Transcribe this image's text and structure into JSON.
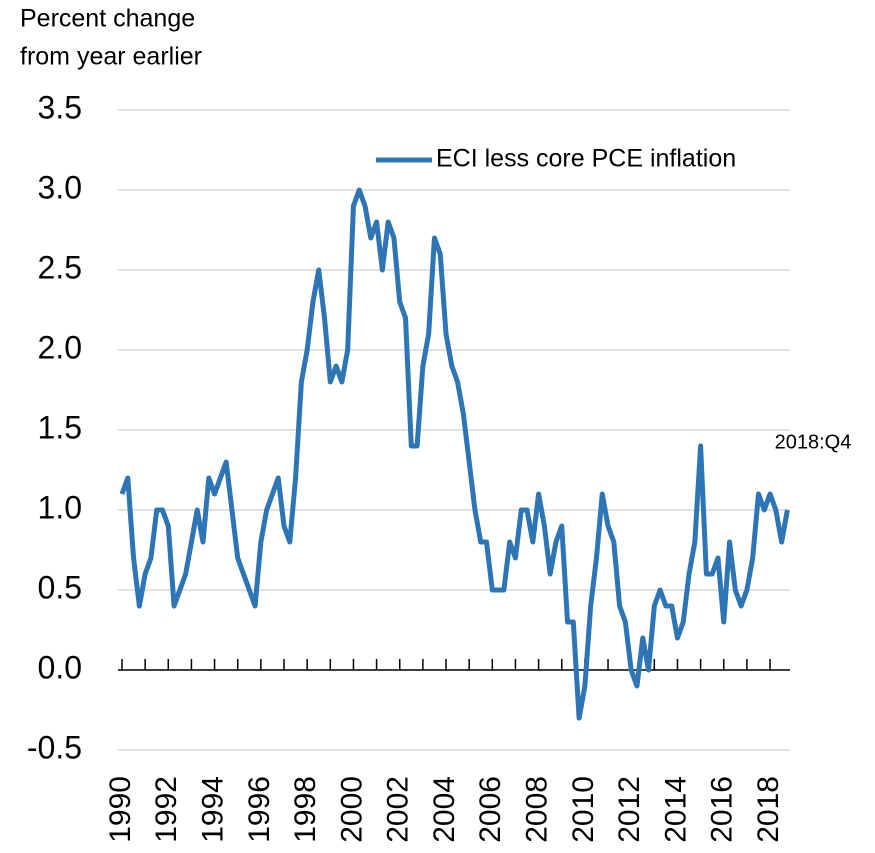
{
  "chart_data": {
    "type": "line",
    "y_label_lines": [
      "Percent change",
      "from year earlier"
    ],
    "annotation": "2018:Q4",
    "x": [
      1990,
      1990.25,
      1990.5,
      1990.75,
      1991,
      1991.25,
      1991.5,
      1991.75,
      1992,
      1992.25,
      1992.5,
      1992.75,
      1993,
      1993.25,
      1993.5,
      1993.75,
      1994,
      1994.25,
      1994.5,
      1994.75,
      1995,
      1995.25,
      1995.5,
      1995.75,
      1996,
      1996.25,
      1996.5,
      1996.75,
      1997,
      1997.25,
      1997.5,
      1997.75,
      1998,
      1998.25,
      1998.5,
      1998.75,
      1999,
      1999.25,
      1999.5,
      1999.75,
      2000,
      2000.25,
      2000.5,
      2000.75,
      2001,
      2001.25,
      2001.5,
      2001.75,
      2002,
      2002.25,
      2002.5,
      2002.75,
      2003,
      2003.25,
      2003.5,
      2003.75,
      2004,
      2004.25,
      2004.5,
      2004.75,
      2005,
      2005.25,
      2005.5,
      2005.75,
      2006,
      2006.25,
      2006.5,
      2006.75,
      2007,
      2007.25,
      2007.5,
      2007.75,
      2008,
      2008.25,
      2008.5,
      2008.75,
      2009,
      2009.25,
      2009.5,
      2009.75,
      2010,
      2010.25,
      2010.5,
      2010.75,
      2011,
      2011.25,
      2011.5,
      2011.75,
      2012,
      2012.25,
      2012.5,
      2012.75,
      2013,
      2013.25,
      2013.5,
      2013.75,
      2014,
      2014.25,
      2014.5,
      2014.75,
      2015,
      2015.25,
      2015.5,
      2015.75,
      2016,
      2016.25,
      2016.5,
      2016.75,
      2017,
      2017.25,
      2017.5,
      2017.75,
      2018,
      2018.25,
      2018.5,
      2018.75
    ],
    "series": [
      {
        "name": "ECI less core PCE inflation",
        "color": "#2e75b6",
        "values": [
          1.1,
          1.2,
          0.7,
          0.4,
          0.6,
          0.7,
          1.0,
          1.0,
          0.9,
          0.4,
          0.5,
          0.6,
          0.8,
          1.0,
          0.8,
          1.2,
          1.1,
          1.2,
          1.3,
          1.0,
          0.7,
          0.6,
          0.5,
          0.4,
          0.8,
          1.0,
          1.1,
          1.2,
          0.9,
          0.8,
          1.2,
          1.8,
          2.0,
          2.3,
          2.5,
          2.2,
          1.8,
          1.9,
          1.8,
          2.0,
          2.9,
          3.0,
          2.9,
          2.7,
          2.8,
          2.5,
          2.8,
          2.7,
          2.3,
          2.2,
          1.4,
          1.4,
          1.9,
          2.1,
          2.7,
          2.6,
          2.1,
          1.9,
          1.8,
          1.6,
          1.3,
          1.0,
          0.8,
          0.8,
          0.5,
          0.5,
          0.5,
          0.8,
          0.7,
          1.0,
          1.0,
          0.8,
          1.1,
          0.9,
          0.6,
          0.8,
          0.9,
          0.3,
          0.3,
          -0.3,
          -0.1,
          0.4,
          0.7,
          1.1,
          0.9,
          0.8,
          0.4,
          0.3,
          0.0,
          -0.1,
          0.2,
          0.0,
          0.4,
          0.5,
          0.4,
          0.4,
          0.2,
          0.3,
          0.6,
          0.8,
          1.4,
          0.6,
          0.6,
          0.7,
          0.3,
          0.8,
          0.5,
          0.4,
          0.5,
          0.7,
          1.1,
          1.0,
          1.1,
          1.0,
          0.8,
          1.0
        ]
      }
    ],
    "xlim": [
      1990,
      2018.75
    ],
    "xticks": [
      1990,
      1992,
      1994,
      1996,
      1998,
      2000,
      2002,
      2004,
      2006,
      2008,
      2010,
      2012,
      2014,
      2016,
      2018
    ],
    "xminorticks": [
      1990,
      1991,
      1992,
      1993,
      1994,
      1995,
      1996,
      1997,
      1998,
      1999,
      2000,
      2001,
      2002,
      2003,
      2004,
      2005,
      2006,
      2007,
      2008,
      2009,
      2010,
      2011,
      2012,
      2013,
      2014,
      2015,
      2016,
      2017,
      2018
    ],
    "ylim": [
      -0.5,
      3.5
    ],
    "yticks": [
      {
        "value": -0.5,
        "label": "-0.5"
      },
      {
        "value": 0,
        "label": "0.0"
      },
      {
        "value": 0.5,
        "label": "0.5"
      },
      {
        "value": 1,
        "label": "1.0"
      },
      {
        "value": 1.5,
        "label": "1.5"
      },
      {
        "value": 2,
        "label": "2.0"
      },
      {
        "value": 2.5,
        "label": "2.5"
      },
      {
        "value": 3,
        "label": "3.0"
      },
      {
        "value": 3.5,
        "label": "3.5"
      }
    ],
    "grid": true,
    "legend": "top-right"
  }
}
